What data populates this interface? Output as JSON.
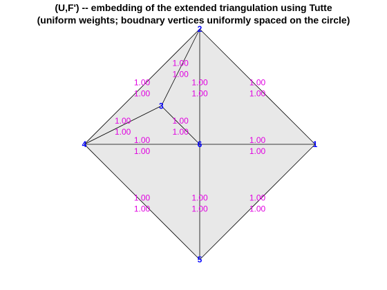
{
  "title": {
    "line1": "(U,F') -- embedding of the extended triangulation using Tutte",
    "line2": "(uniform weights; boudnary vertices uniformly spaced on the circle)"
  },
  "colors": {
    "face_fill": "#e8e8e8",
    "edge_stroke": "#000000",
    "vertex_label": "#0000ff",
    "weight_label": "#e000e0"
  },
  "vertices": [
    {
      "id": "v1",
      "label": "1",
      "x": 1,
      "y": 0
    },
    {
      "id": "v2",
      "label": "2",
      "x": 0,
      "y": 1
    },
    {
      "id": "v3",
      "label": "3",
      "x": -0.333,
      "y": 0.333
    },
    {
      "id": "v4",
      "label": "4",
      "x": -1,
      "y": 0
    },
    {
      "id": "v5",
      "label": "5",
      "x": 0,
      "y": -1
    },
    {
      "id": "v6",
      "label": "6",
      "x": 0,
      "y": 0
    }
  ],
  "edges": [
    {
      "from": "v1",
      "to": "v2",
      "labels": [
        "1.00",
        "1.00"
      ]
    },
    {
      "from": "v2",
      "to": "v4",
      "labels": [
        "1.00",
        "1.00"
      ]
    },
    {
      "from": "v4",
      "to": "v5",
      "labels": [
        "1.00",
        "1.00"
      ]
    },
    {
      "from": "v5",
      "to": "v1",
      "labels": [
        "1.00",
        "1.00"
      ]
    },
    {
      "from": "v2",
      "to": "v3",
      "labels": [
        "1.00",
        "1.00"
      ]
    },
    {
      "from": "v3",
      "to": "v4",
      "labels": [
        "1.00",
        "1.00"
      ]
    },
    {
      "from": "v3",
      "to": "v6",
      "labels": [
        "1.00",
        "1.00"
      ]
    },
    {
      "from": "v2",
      "to": "v6",
      "labels": [
        "1.00",
        "1.00"
      ]
    },
    {
      "from": "v4",
      "to": "v6",
      "labels": [
        "1.00",
        "1.00"
      ]
    },
    {
      "from": "v1",
      "to": "v6",
      "labels": [
        "1.00",
        "1.00"
      ]
    },
    {
      "from": "v5",
      "to": "v6",
      "labels": [
        "1.00",
        "1.00"
      ]
    }
  ]
}
